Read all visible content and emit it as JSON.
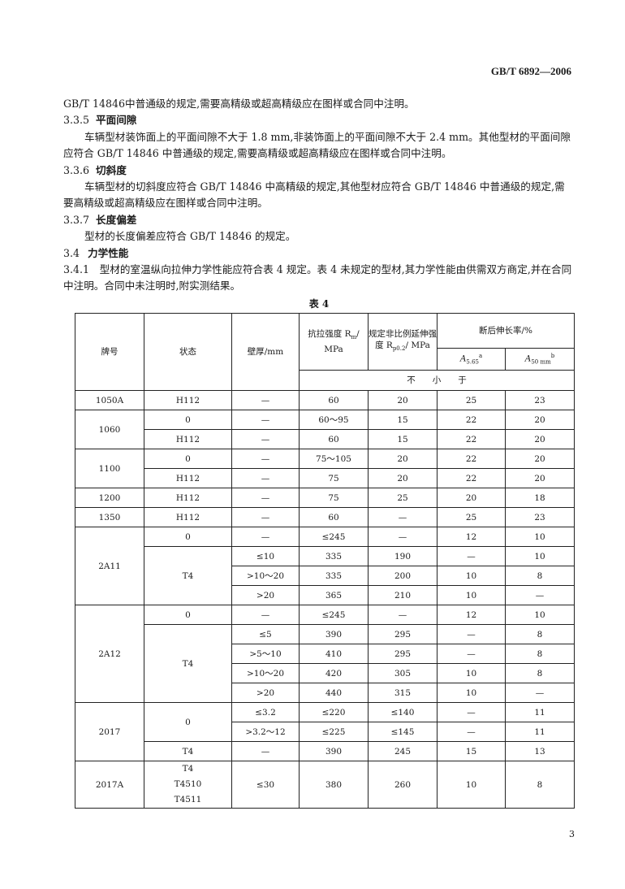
{
  "header": {
    "standard_no": "GB/T 6892—2006"
  },
  "paragraphs": {
    "p0": "GB/T 14846中普通级的规定,需要高精级或超高精级应在图样或合同中注明。",
    "s335_num": "3.3.5",
    "s335_title": "平面间隙",
    "p335": "车辆型材装饰面上的平面间隙不大于 1.8 mm,非装饰面上的平面间隙不大于 2.4 mm。其他型材的平面间隙应符合 GB/T 14846 中普通级的规定,需要高精级或超高精级应在图样或合同中注明。",
    "s336_num": "3.3.6",
    "s336_title": "切斜度",
    "p336": "车辆型材的切斜度应符合 GB/T 14846 中高精级的规定,其他型材应符合 GB/T 14846 中普通级的规定,需要高精级或超高精级应在图样或合同中注明。",
    "s337_num": "3.3.7",
    "s337_title": "长度偏差",
    "p337": "型材的长度偏差应符合 GB/T 14846 的规定。",
    "s34_num": "3.4",
    "s34_title": "力学性能",
    "p341": "3.4.1　型材的室温纵向拉伸力学性能应符合表 4 规定。表 4 未规定的型材,其力学性能由供需双方商定,并在合同中注明。合同中未注明时,附实测结果。"
  },
  "table": {
    "caption": "表 4",
    "headers": {
      "grade": "牌号",
      "temper": "状态",
      "thickness": "壁厚/mm",
      "tensile": "抗拉强度 R",
      "tensile_sub": "m",
      "tensile_unit": "/ MPa",
      "yield": "规定非比例延伸强度 R",
      "yield_sub": "p0.2",
      "yield_unit": "/ MPa",
      "elong": "断后伸长率/%",
      "a565": "A",
      "a565_sub": "5.65",
      "a565_sup": "a",
      "a50": "A",
      "a50_sub": "50 mm",
      "a50_sup": "b",
      "not_less": "不　　小　　于"
    },
    "rows": [
      [
        {
          "t": "1050A"
        },
        {
          "t": "H112"
        },
        {
          "t": "—"
        },
        {
          "t": "60"
        },
        {
          "t": "20"
        },
        {
          "t": "25"
        },
        {
          "t": "23"
        }
      ],
      [
        {
          "t": "1060",
          "rs": 2
        },
        {
          "t": "0"
        },
        {
          "t": "—"
        },
        {
          "t": "60～95"
        },
        {
          "t": "15"
        },
        {
          "t": "22"
        },
        {
          "t": "20"
        }
      ],
      [
        {
          "t": "H112"
        },
        {
          "t": "—"
        },
        {
          "t": "60"
        },
        {
          "t": "15"
        },
        {
          "t": "22"
        },
        {
          "t": "20"
        }
      ],
      [
        {
          "t": "1100",
          "rs": 2
        },
        {
          "t": "0"
        },
        {
          "t": "—"
        },
        {
          "t": "75～105"
        },
        {
          "t": "20"
        },
        {
          "t": "22"
        },
        {
          "t": "20"
        }
      ],
      [
        {
          "t": "H112"
        },
        {
          "t": "—"
        },
        {
          "t": "75"
        },
        {
          "t": "20"
        },
        {
          "t": "22"
        },
        {
          "t": "20"
        }
      ],
      [
        {
          "t": "1200"
        },
        {
          "t": "H112"
        },
        {
          "t": "—"
        },
        {
          "t": "75"
        },
        {
          "t": "25"
        },
        {
          "t": "20"
        },
        {
          "t": "18"
        }
      ],
      [
        {
          "t": "1350"
        },
        {
          "t": "H112"
        },
        {
          "t": "—"
        },
        {
          "t": "60"
        },
        {
          "t": "—"
        },
        {
          "t": "25"
        },
        {
          "t": "23"
        }
      ],
      [
        {
          "t": "2A11",
          "rs": 4
        },
        {
          "t": "0"
        },
        {
          "t": "—"
        },
        {
          "t": "≤245"
        },
        {
          "t": "—"
        },
        {
          "t": "12"
        },
        {
          "t": "10"
        }
      ],
      [
        {
          "t": "T4",
          "rs": 3
        },
        {
          "t": "≤10"
        },
        {
          "t": "335"
        },
        {
          "t": "190"
        },
        {
          "t": "—"
        },
        {
          "t": "10"
        }
      ],
      [
        {
          "t": ">10～20"
        },
        {
          "t": "335"
        },
        {
          "t": "200"
        },
        {
          "t": "10"
        },
        {
          "t": "8"
        }
      ],
      [
        {
          "t": ">20"
        },
        {
          "t": "365"
        },
        {
          "t": "210"
        },
        {
          "t": "10"
        },
        {
          "t": "—"
        }
      ],
      [
        {
          "t": "2A12",
          "rs": 5
        },
        {
          "t": "0"
        },
        {
          "t": "—"
        },
        {
          "t": "≤245"
        },
        {
          "t": "—"
        },
        {
          "t": "12"
        },
        {
          "t": "10"
        }
      ],
      [
        {
          "t": "T4",
          "rs": 4
        },
        {
          "t": "≤5"
        },
        {
          "t": "390"
        },
        {
          "t": "295"
        },
        {
          "t": "—"
        },
        {
          "t": "8"
        }
      ],
      [
        {
          "t": ">5～10"
        },
        {
          "t": "410"
        },
        {
          "t": "295"
        },
        {
          "t": "—"
        },
        {
          "t": "8"
        }
      ],
      [
        {
          "t": ">10～20"
        },
        {
          "t": "420"
        },
        {
          "t": "305"
        },
        {
          "t": "10"
        },
        {
          "t": "8"
        }
      ],
      [
        {
          "t": ">20"
        },
        {
          "t": "440"
        },
        {
          "t": "315"
        },
        {
          "t": "10"
        },
        {
          "t": "—"
        }
      ],
      [
        {
          "t": "2017",
          "rs": 3
        },
        {
          "t": "0",
          "rs": 2
        },
        {
          "t": "≤3.2"
        },
        {
          "t": "≤220"
        },
        {
          "t": "≤140"
        },
        {
          "t": "—"
        },
        {
          "t": "11"
        }
      ],
      [
        {
          "t": ">3.2～12"
        },
        {
          "t": "≤225"
        },
        {
          "t": "≤145"
        },
        {
          "t": "—"
        },
        {
          "t": "11"
        }
      ],
      [
        {
          "t": "T4"
        },
        {
          "t": "—"
        },
        {
          "t": "390"
        },
        {
          "t": "245"
        },
        {
          "t": "15"
        },
        {
          "t": "13"
        }
      ],
      [
        {
          "t": "2017A",
          "tall": true
        },
        {
          "t": "T4\nT4510\nT4511"
        },
        {
          "t": "≤30"
        },
        {
          "t": "380"
        },
        {
          "t": "260"
        },
        {
          "t": "10"
        },
        {
          "t": "8"
        }
      ]
    ]
  },
  "footer": {
    "page_number": "3"
  }
}
